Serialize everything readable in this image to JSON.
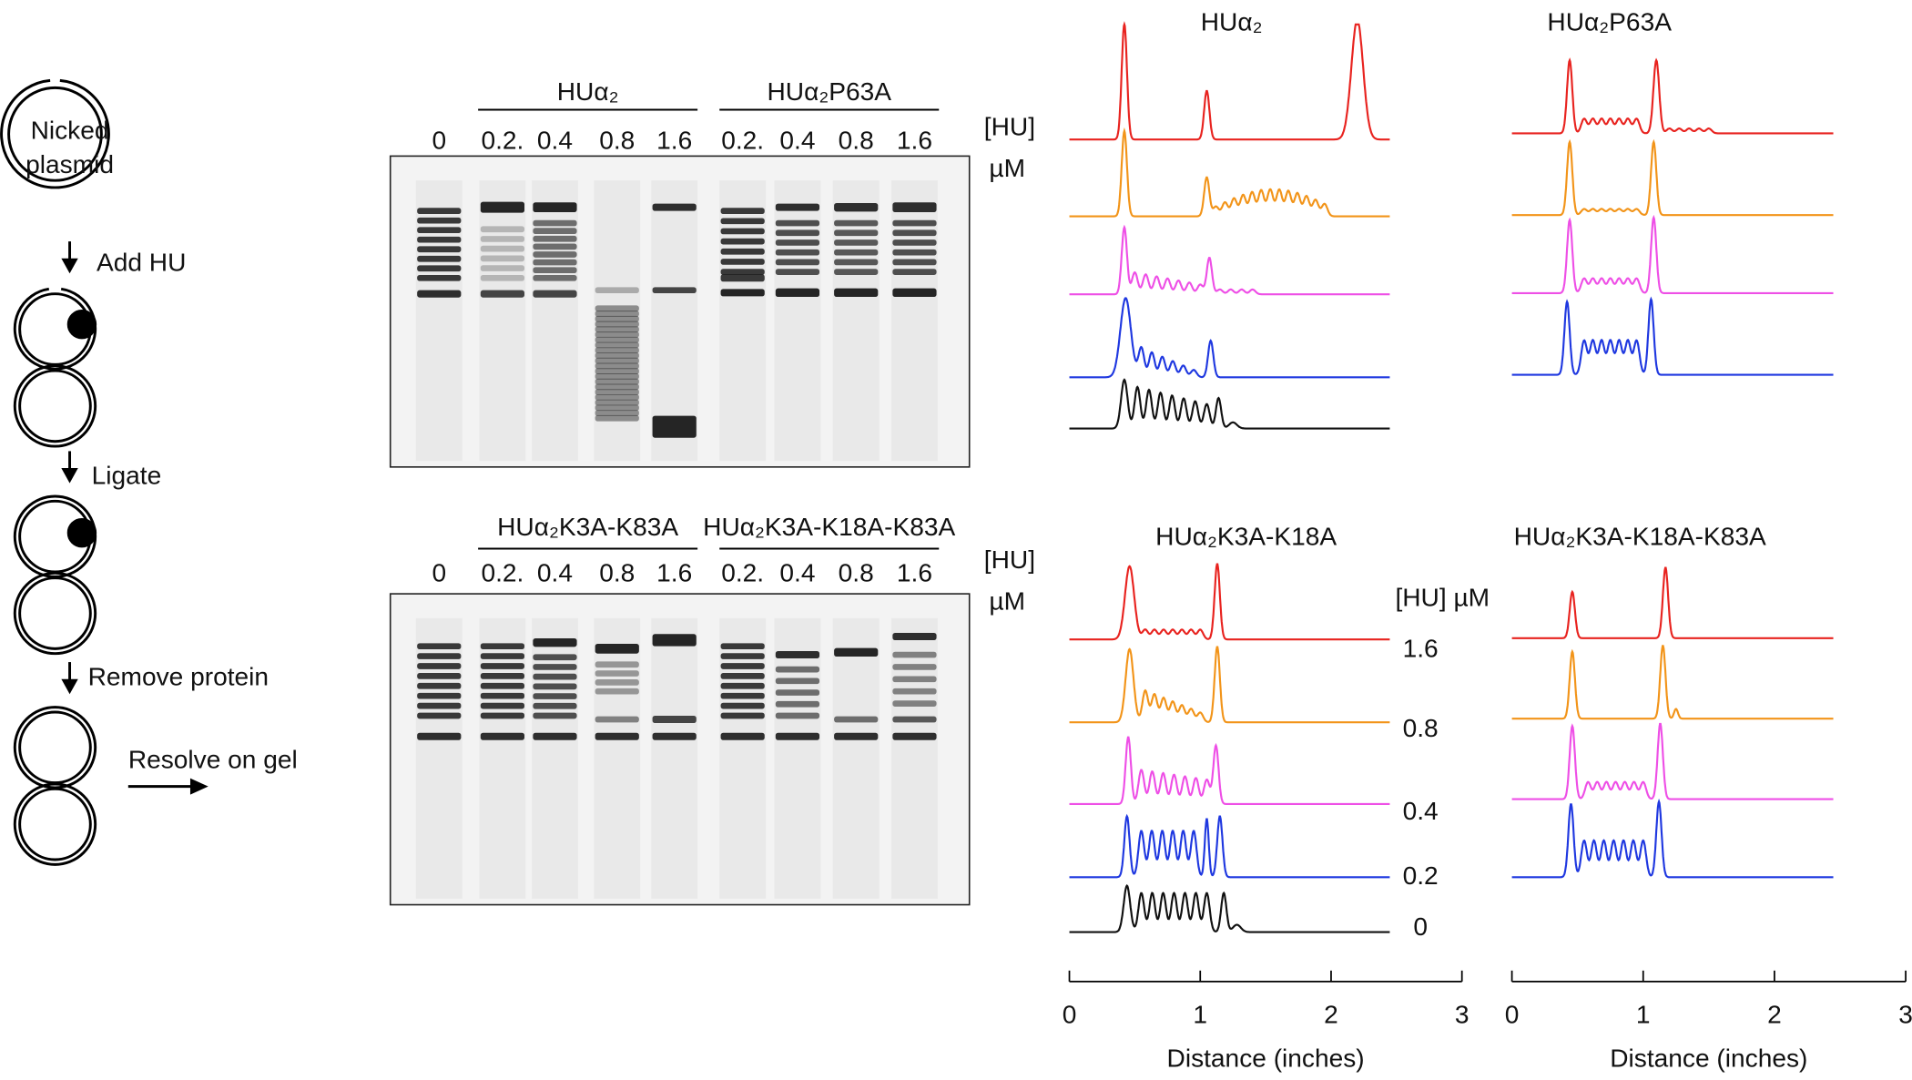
{
  "schematic": {
    "start_label": [
      "Nicked",
      "plasmid"
    ],
    "steps": [
      "Add HU",
      "Ligate",
      "Remove protein"
    ],
    "final_label": "Resolve on gel"
  },
  "gels": [
    {
      "groups": [
        "HUα₂",
        "HUα₂P63A"
      ],
      "lanes": [
        "0",
        "0.2.",
        "0.4",
        "0.8",
        "1.6",
        "0.2.",
        "0.4",
        "0.8",
        "1.6"
      ],
      "unit": [
        "[HU]",
        "µM"
      ]
    },
    {
      "groups": [
        "HUα₂K3A-K83A",
        "HUα₂K3A-K18A-K83A"
      ],
      "lanes": [
        "0",
        "0.2.",
        "0.4",
        "0.8",
        "1.6",
        "0.2.",
        "0.4",
        "0.8",
        "1.6"
      ],
      "unit": [
        "[HU]",
        "µM"
      ]
    }
  ],
  "traces": {
    "panels": [
      {
        "title": "HUα₂"
      },
      {
        "title": "HUα₂P63A"
      },
      {
        "title": "HUα₂K3A-K18A"
      },
      {
        "title": "HUα₂K3A-K18A-K83A"
      }
    ],
    "concentration_header": "[HU] µM",
    "concentrations": [
      "1.6",
      "0.8",
      "0.4",
      "0.2",
      "0"
    ],
    "axes": [
      {
        "xlim": [
          0,
          3
        ],
        "xticks": [
          0,
          1,
          2,
          3
        ],
        "xlabel": "Distance (inches)"
      },
      {
        "xlim": [
          0,
          3
        ],
        "xticks": [
          0,
          1,
          2,
          3
        ],
        "xlabel": "Distance (inches)"
      }
    ]
  }
}
